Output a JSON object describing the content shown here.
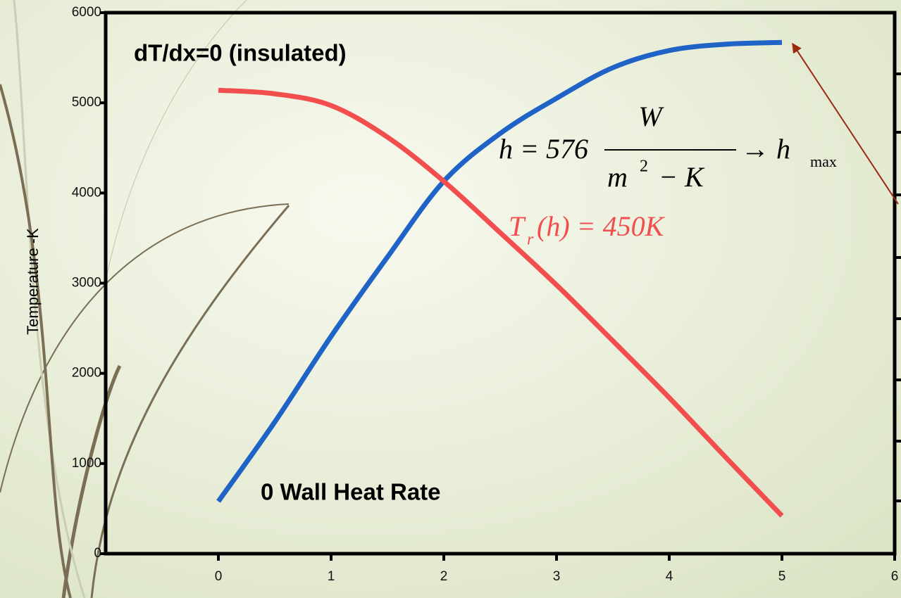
{
  "chart_data": {
    "type": "line",
    "y_label": "Temperature -K",
    "annotations": {
      "condition": "dT/dx=0 (insulated)",
      "wall": "0 Wall Heat Rate",
      "h_lhs": "h = 576",
      "h_num": "W",
      "h_den_m": "m",
      "h_den_exp": "2",
      "h_den_k": "− K",
      "h_arrow": "→ h",
      "h_sub": "max",
      "tr_lhs": "T",
      "tr_sub": "r",
      "tr_rhs": "(h) = 450K"
    },
    "x": [
      0,
      0.5,
      1,
      1.5,
      2,
      2.5,
      3,
      3.5,
      4,
      4.5,
      5
    ],
    "series": [
      {
        "color": "#1f63c6",
        "values": [
          580,
          1460,
          2410,
          3290,
          4130,
          4660,
          5050,
          5390,
          5580,
          5650,
          5670
        ]
      },
      {
        "color": "#f24e4e",
        "values": [
          5140,
          5100,
          4970,
          4620,
          4130,
          3560,
          2980,
          2360,
          1730,
          1070,
          420
        ]
      }
    ],
    "xlim": [
      -1,
      6
    ],
    "xticks": [
      0,
      1,
      2,
      3,
      4,
      5,
      6
    ],
    "ylim": [
      0,
      6000
    ],
    "yticks": [
      0,
      1000,
      2000,
      3000,
      4000,
      5000,
      6000
    ],
    "grid": false
  }
}
